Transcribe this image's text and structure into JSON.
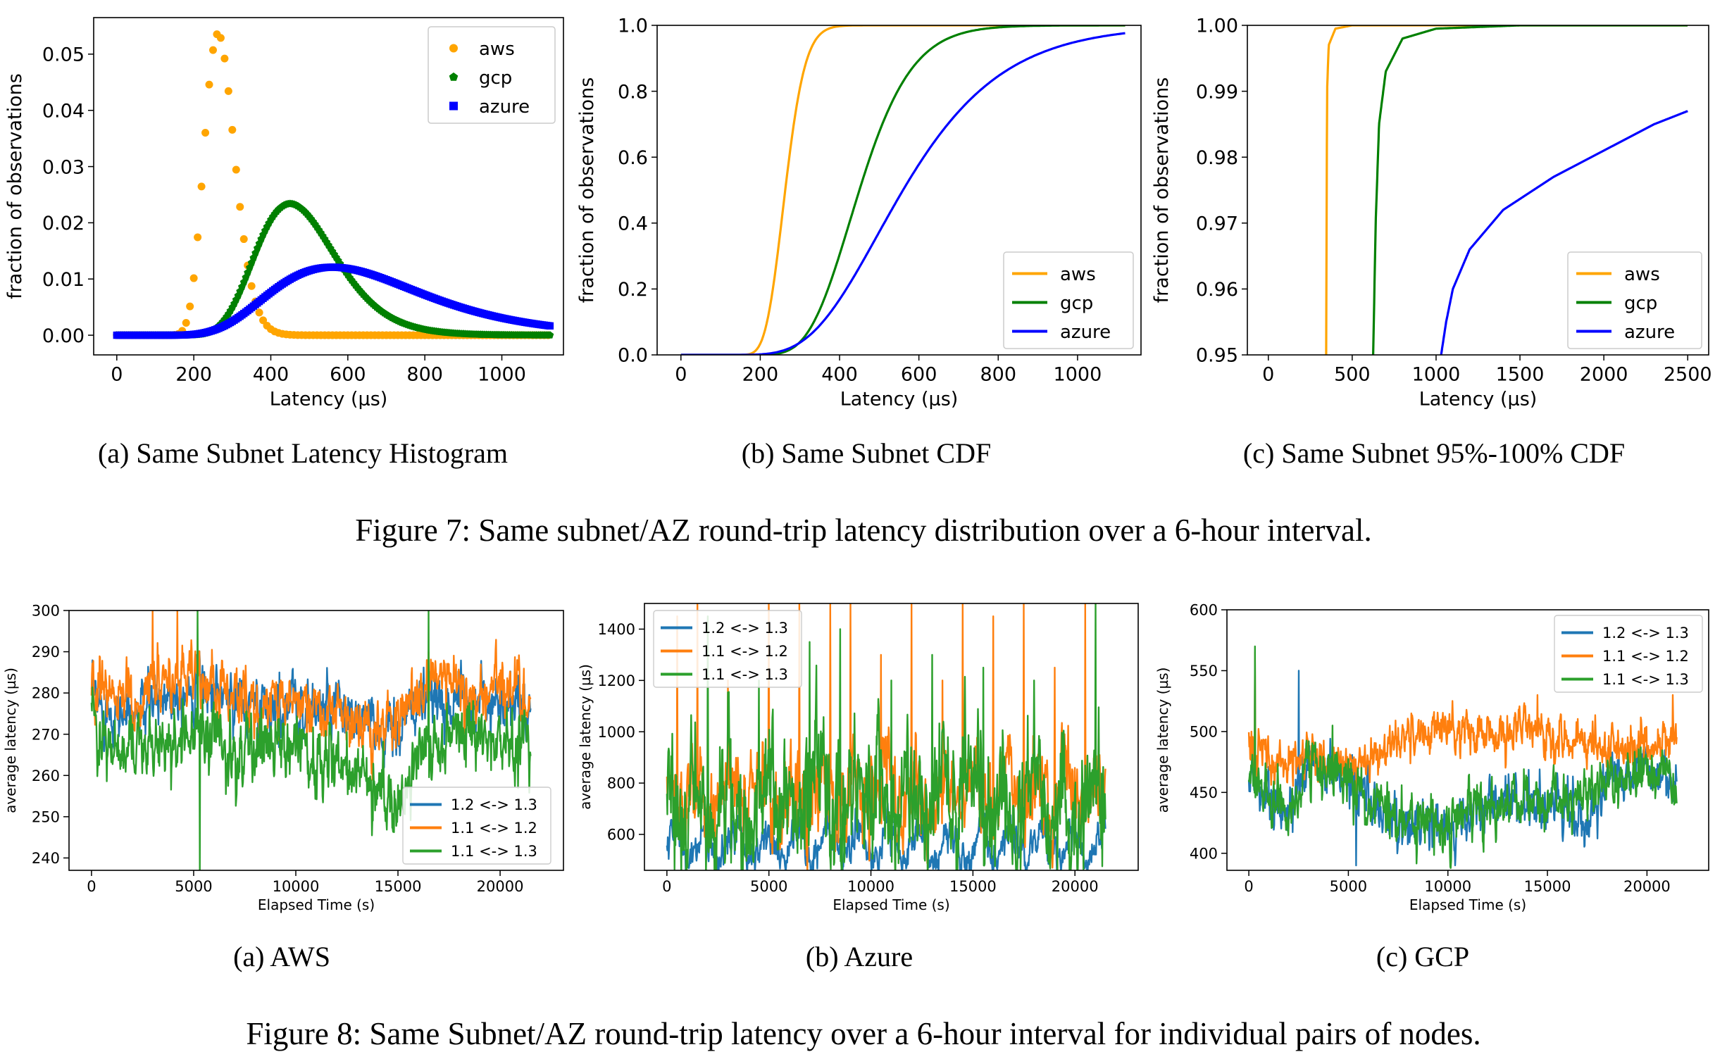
{
  "figure7": {
    "caption": "Figure 7: Same subnet/AZ round-trip latency distribution over a 6-hour interval.",
    "subcaptions": [
      "(a) Same Subnet Latency Histogram",
      "(b) Same Subnet CDF",
      "(c) Same Subnet 95%-100% CDF"
    ]
  },
  "figure8": {
    "caption": "Figure 8: Same Subnet/AZ round-trip latency over a 6-hour interval for individual pairs of nodes.",
    "subcaptions": [
      "(a) AWS",
      "(b) Azure",
      "(c) GCP"
    ]
  },
  "colors": {
    "aws": "#FFA500",
    "gcp": "#008000",
    "azure": "#0000FF",
    "pair12_13": "#1F77B4",
    "pair11_12": "#FF7F0E",
    "pair11_13": "#2CA02C"
  },
  "chart_data": [
    {
      "id": "fig7a",
      "type": "scatter",
      "xlabel": "Latency (µs)",
      "ylabel": "fraction of observations",
      "xlim": [
        -60,
        1160
      ],
      "ylim": [
        -0.0035,
        0.0565
      ],
      "xticks": [
        "0",
        "200",
        "400",
        "600",
        "800",
        "1000"
      ],
      "yticks": [
        "0.00",
        "0.01",
        "0.02",
        "0.03",
        "0.04",
        "0.05"
      ],
      "legend_position": "top-right",
      "grid": false,
      "series": [
        {
          "name": "aws",
          "marker": "circle",
          "model": {
            "dist": "lognormal",
            "median": 263,
            "sigma": 0.15,
            "peak": 0.0537
          }
        },
        {
          "name": "gcp",
          "marker": "pentagon",
          "model": {
            "dist": "lognormal",
            "median": 450,
            "sigma": 0.23,
            "peak": 0.0234
          }
        },
        {
          "name": "azure",
          "marker": "square",
          "model": {
            "dist": "lognormal",
            "median": 560,
            "sigma": 0.35,
            "peak": 0.0121
          }
        }
      ]
    },
    {
      "id": "fig7b",
      "type": "line",
      "xlabel": "Latency (µs)",
      "ylabel": "fraction of observations",
      "xlim": [
        -60,
        1160
      ],
      "ylim": [
        0.0,
        1.0
      ],
      "xticks": [
        "0",
        "200",
        "400",
        "600",
        "800",
        "1000"
      ],
      "yticks": [
        "0.0",
        "0.2",
        "0.4",
        "0.6",
        "0.8",
        "1.0"
      ],
      "legend_position": "bottom-right",
      "grid": false,
      "series": [
        {
          "name": "aws",
          "model": {
            "dist": "lognormal_cdf",
            "median": 263,
            "sigma": 0.15
          }
        },
        {
          "name": "gcp",
          "model": {
            "dist": "lognormal_cdf",
            "median": 450,
            "sigma": 0.23
          }
        },
        {
          "name": "azure",
          "model": {
            "dist": "lognormal_cdf",
            "median": 560,
            "sigma": 0.35
          }
        }
      ]
    },
    {
      "id": "fig7c",
      "type": "line",
      "xlabel": "Latency (µs)",
      "ylabel": "fraction of observations",
      "xlim": [
        -125,
        2625
      ],
      "ylim": [
        0.95,
        1.0
      ],
      "xticks": [
        "0",
        "500",
        "1000",
        "1500",
        "2000",
        "2500"
      ],
      "yticks": [
        "0.95",
        "0.96",
        "0.97",
        "0.98",
        "0.99",
        "1.00"
      ],
      "legend_position": "bottom-right",
      "grid": false,
      "series": [
        {
          "name": "aws",
          "points": [
            [
              345,
              0.95
            ],
            [
              350,
              0.99
            ],
            [
              360,
              0.997
            ],
            [
              400,
              0.9995
            ],
            [
              500,
              1.0
            ],
            [
              2500,
              1.0
            ]
          ]
        },
        {
          "name": "gcp",
          "points": [
            [
              625,
              0.95
            ],
            [
              640,
              0.97
            ],
            [
              660,
              0.985
            ],
            [
              700,
              0.993
            ],
            [
              800,
              0.998
            ],
            [
              1000,
              0.9995
            ],
            [
              1500,
              1.0
            ],
            [
              2500,
              1.0
            ]
          ]
        },
        {
          "name": "azure",
          "points": [
            [
              1030,
              0.95
            ],
            [
              1060,
              0.955
            ],
            [
              1100,
              0.96
            ],
            [
              1200,
              0.966
            ],
            [
              1400,
              0.972
            ],
            [
              1700,
              0.977
            ],
            [
              2000,
              0.981
            ],
            [
              2300,
              0.985
            ],
            [
              2500,
              0.987
            ]
          ]
        }
      ]
    },
    {
      "id": "fig8a",
      "type": "line",
      "xlabel": "Elapsed Time (s)",
      "ylabel": "average latency (µs)",
      "xlim": [
        -1100,
        23100
      ],
      "ylim": [
        237,
        300
      ],
      "xticks": [
        "0",
        "5000",
        "10000",
        "15000",
        "20000"
      ],
      "yticks": [
        "240",
        "250",
        "260",
        "270",
        "280",
        "290",
        "300"
      ],
      "legend_position": "bottom-right",
      "grid": false,
      "series": [
        {
          "name": "1.2 <-> 1.3",
          "points": [
            [
              0,
              278
            ],
            [
              2000,
              274
            ],
            [
              4000,
              281
            ],
            [
              5000,
              282
            ],
            [
              6000,
              281
            ],
            [
              8000,
              276
            ],
            [
              10000,
              277
            ],
            [
              12000,
              275
            ],
            [
              14000,
              271
            ],
            [
              15000,
              270
            ],
            [
              16000,
              278
            ],
            [
              18000,
              278
            ],
            [
              20000,
              279
            ],
            [
              21500,
              275
            ]
          ],
          "noise": 3,
          "spikes": [
            [
              5200,
              290
            ],
            [
              9200,
              285
            ]
          ]
        },
        {
          "name": "1.1 <-> 1.2",
          "points": [
            [
              0,
              283
            ],
            [
              2000,
              278
            ],
            [
              4000,
              283
            ],
            [
              5000,
              284
            ],
            [
              6000,
              282
            ],
            [
              8000,
              278
            ],
            [
              10000,
              278
            ],
            [
              12000,
              276
            ],
            [
              14000,
              272
            ],
            [
              15000,
              273
            ],
            [
              16000,
              282
            ],
            [
              17000,
              285
            ],
            [
              18000,
              281
            ],
            [
              20000,
              280
            ],
            [
              21500,
              276
            ]
          ],
          "noise": 3,
          "spikes": [
            [
              3000,
              300
            ],
            [
              4200,
              300
            ],
            [
              16500,
              290
            ]
          ]
        },
        {
          "name": "1.1 <-> 1.3",
          "points": [
            [
              0,
              273
            ],
            [
              1000,
              265
            ],
            [
              2000,
              266
            ],
            [
              3000,
              268
            ],
            [
              4000,
              268
            ],
            [
              5000,
              270
            ],
            [
              6000,
              268
            ],
            [
              8000,
              266
            ],
            [
              10000,
              271
            ],
            [
              11000,
              264
            ],
            [
              12000,
              263
            ],
            [
              13000,
              262
            ],
            [
              14000,
              255
            ],
            [
              15000,
              256
            ],
            [
              16000,
              267
            ],
            [
              18000,
              269
            ],
            [
              20000,
              270
            ],
            [
              21500,
              266
            ]
          ],
          "noise": 3.5,
          "spikes": [
            [
              5200,
              300
            ],
            [
              5300,
              237
            ],
            [
              16500,
              300
            ]
          ]
        }
      ]
    },
    {
      "id": "fig8b",
      "type": "line",
      "xlabel": "Elapsed Time (s)",
      "ylabel": "average latency (µs)",
      "xlim": [
        -1100,
        23100
      ],
      "ylim": [
        460,
        1500
      ],
      "xticks": [
        "0",
        "5000",
        "10000",
        "15000",
        "20000"
      ],
      "yticks": [
        "600",
        "800",
        "1000",
        "1200",
        "1400"
      ],
      "legend_position": "top-left",
      "grid": false,
      "series": [
        {
          "name": "1.2 <-> 1.3",
          "points": [
            [
              0,
              560
            ],
            [
              21500,
              560
            ]
          ],
          "noise": 30,
          "oscillation": [
            60,
            1500
          ]
        },
        {
          "name": "1.1 <-> 1.2",
          "points": [
            [
              0,
              760
            ],
            [
              21500,
              760
            ]
          ],
          "noise": 70,
          "oscillation": [
            60,
            1500
          ],
          "spikes": [
            [
              500,
              1450
            ],
            [
              1500,
              1500
            ],
            [
              3000,
              1200
            ],
            [
              5000,
              1500
            ],
            [
              6500,
              1500
            ],
            [
              8000,
              1500
            ],
            [
              9000,
              1500
            ],
            [
              10500,
              1300
            ],
            [
              12000,
              1500
            ],
            [
              13500,
              1200
            ],
            [
              14500,
              1500
            ],
            [
              16000,
              1450
            ],
            [
              17500,
              1500
            ],
            [
              19000,
              1250
            ],
            [
              20500,
              1500
            ]
          ]
        },
        {
          "name": "1.1 <-> 1.3",
          "points": [
            [
              0,
              720
            ],
            [
              21500,
              720
            ]
          ],
          "noise": 110,
          "oscillation": [
            80,
            1500
          ],
          "spikes": [
            [
              2000,
              1450
            ],
            [
              4500,
              1200
            ],
            [
              7000,
              1350
            ],
            [
              8500,
              1400
            ],
            [
              11000,
              1200
            ],
            [
              13000,
              1300
            ],
            [
              15500,
              1250
            ],
            [
              18000,
              1200
            ],
            [
              21000,
              1500
            ]
          ]
        }
      ]
    },
    {
      "id": "fig8c",
      "type": "line",
      "xlabel": "Elapsed Time (s)",
      "ylabel": "average latency (µs)",
      "xlim": [
        -1100,
        23100
      ],
      "ylim": [
        386,
        600
      ],
      "xticks": [
        "0",
        "5000",
        "10000",
        "15000",
        "20000"
      ],
      "yticks": [
        "400",
        "450",
        "500",
        "550",
        "600"
      ],
      "legend_position": "top-right",
      "grid": false,
      "series": [
        {
          "name": "1.2 <-> 1.3",
          "points": [
            [
              0,
              470
            ],
            [
              1000,
              445
            ],
            [
              2000,
              430
            ],
            [
              3000,
              480
            ],
            [
              4000,
              470
            ],
            [
              5000,
              470
            ],
            [
              6000,
              440
            ],
            [
              8000,
              425
            ],
            [
              10000,
              420
            ],
            [
              12000,
              440
            ],
            [
              14000,
              440
            ],
            [
              16000,
              440
            ],
            [
              17000,
              420
            ],
            [
              18000,
              460
            ],
            [
              20000,
              470
            ],
            [
              21500,
              450
            ]
          ],
          "noise": 9,
          "spikes": [
            [
              300,
              560
            ],
            [
              2500,
              550
            ],
            [
              5400,
              390
            ]
          ]
        },
        {
          "name": "1.1 <-> 1.2",
          "points": [
            [
              0,
              490
            ],
            [
              1500,
              470
            ],
            [
              3000,
              480
            ],
            [
              4500,
              470
            ],
            [
              6000,
              480
            ],
            [
              8000,
              495
            ],
            [
              10000,
              500
            ],
            [
              12000,
              495
            ],
            [
              14000,
              500
            ],
            [
              16000,
              495
            ],
            [
              18000,
              485
            ],
            [
              20000,
              485
            ],
            [
              21500,
              500
            ]
          ],
          "noise": 8,
          "spikes": [
            [
              300,
              565
            ],
            [
              14500,
              530
            ],
            [
              21300,
              530
            ]
          ]
        },
        {
          "name": "1.1 <-> 1.3",
          "points": [
            [
              0,
              470
            ],
            [
              1000,
              445
            ],
            [
              2000,
              435
            ],
            [
              3000,
              475
            ],
            [
              4000,
              470
            ],
            [
              5000,
              465
            ],
            [
              6000,
              440
            ],
            [
              8000,
              425
            ],
            [
              10000,
              425
            ],
            [
              12000,
              440
            ],
            [
              14000,
              445
            ],
            [
              16000,
              440
            ],
            [
              18000,
              460
            ],
            [
              20000,
              470
            ],
            [
              21500,
              455
            ]
          ],
          "noise": 9,
          "spikes": [
            [
              300,
              570
            ],
            [
              4200,
              505
            ]
          ]
        }
      ]
    }
  ]
}
